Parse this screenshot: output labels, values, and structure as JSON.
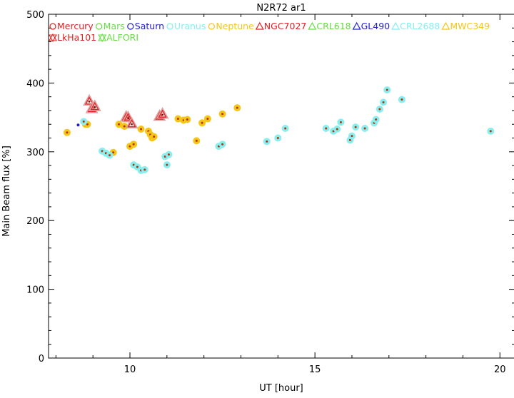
{
  "chart_data": {
    "type": "scatter",
    "title": "N2R72 ar1",
    "xlabel": "UT [hour]",
    "ylabel": "Main Beam flux [%]",
    "xlim": [
      7.8,
      20.4
    ],
    "ylim": [
      0,
      500
    ],
    "xticks": [
      10,
      15,
      20
    ],
    "yticks": [
      0,
      100,
      200,
      300,
      400,
      500
    ],
    "grid": false,
    "legend_placement": "top-left",
    "legend": [
      {
        "label": "Mercury",
        "marker": "circle",
        "color": "#e02020"
      },
      {
        "label": "Mars",
        "marker": "circle",
        "color": "#66dd44"
      },
      {
        "label": "Saturn",
        "marker": "circle",
        "color": "#2222cc"
      },
      {
        "label": "Uranus",
        "marker": "circle",
        "color": "#88eeee"
      },
      {
        "label": "Neptune",
        "marker": "circle",
        "color": "#f5c518"
      },
      {
        "label": "NGC7027",
        "marker": "triangle",
        "color": "#e02020"
      },
      {
        "label": "CRL618",
        "marker": "triangle",
        "color": "#66dd44"
      },
      {
        "label": "GL490",
        "marker": "triangle",
        "color": "#2222cc"
      },
      {
        "label": "CRL2688",
        "marker": "triangle",
        "color": "#88eeee"
      },
      {
        "label": "MWC349",
        "marker": "triangle",
        "color": "#f5c518"
      },
      {
        "label": "LkHa101",
        "marker": "star",
        "color": "#e02020"
      },
      {
        "label": "ALFORI",
        "marker": "star",
        "color": "#66dd44"
      }
    ],
    "series": [
      {
        "name": "Neptune",
        "marker": "circle",
        "color": "#f5c518",
        "x": [
          8.3,
          8.8,
          8.85,
          9.55,
          9.7,
          9.85,
          10.0,
          10.1,
          10.3,
          10.5,
          10.55,
          10.6,
          10.65,
          11.3,
          11.45,
          11.55,
          11.8,
          11.95,
          12.1,
          12.5,
          12.9
        ],
        "y": [
          328,
          340,
          340,
          299,
          340,
          337,
          308,
          311,
          333,
          330,
          325,
          320,
          322,
          348,
          346,
          347,
          316,
          342,
          348,
          355,
          364
        ]
      },
      {
        "name": "Uranus",
        "marker": "circle",
        "color": "#88eeee",
        "x": [
          8.75,
          9.25,
          9.35,
          9.45,
          10.1,
          10.2,
          10.3,
          10.4,
          10.95,
          11.0,
          11.05,
          12.4,
          12.5,
          13.7,
          14.0,
          14.2,
          15.3,
          15.5,
          15.6,
          15.7,
          15.95,
          16.0,
          16.1,
          16.35,
          16.6,
          16.65,
          16.75,
          16.85,
          16.95,
          17.35,
          19.75
        ],
        "y": [
          344,
          301,
          298,
          295,
          281,
          278,
          273,
          274,
          293,
          281,
          296,
          308,
          311,
          315,
          320,
          334,
          334,
          330,
          333,
          343,
          317,
          323,
          336,
          334,
          342,
          347,
          362,
          372,
          390,
          376,
          330
        ]
      },
      {
        "name": "Saturn",
        "marker": "circle",
        "color": "#2222cc",
        "x": [
          8.6
        ],
        "y": [
          339
        ]
      },
      {
        "name": "NGC7027",
        "marker": "triangle",
        "color": "#e02020",
        "x": [
          8.9,
          8.97,
          9.05,
          9.9,
          9.95,
          10.05,
          10.8,
          10.88
        ],
        "y": [
          373,
          362,
          365,
          350,
          349,
          340,
          351,
          354
        ]
      }
    ]
  }
}
